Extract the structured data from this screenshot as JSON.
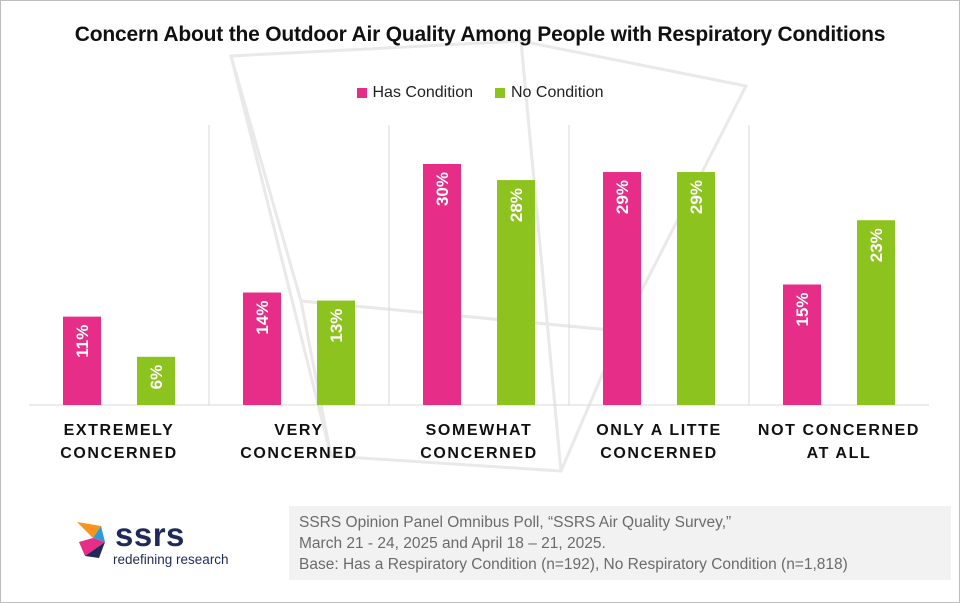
{
  "chart_data": {
    "type": "bar",
    "title": "Concern About the Outdoor Air Quality Among People with Respiratory Conditions",
    "categories": [
      [
        "EXTREMELY",
        "CONCERNED"
      ],
      [
        "VERY",
        "CONCERNED"
      ],
      [
        "SOMEWHAT",
        "CONCERNED"
      ],
      [
        "ONLY A LITTE",
        "CONCERNED"
      ],
      [
        "NOT CONCERNED",
        "AT ALL"
      ]
    ],
    "series": [
      {
        "name": "Has Condition",
        "color": "#e62d87",
        "values": [
          11,
          14,
          30,
          29,
          15
        ],
        "labels": [
          "11%",
          "14%",
          "30%",
          "29%",
          "15%"
        ]
      },
      {
        "name": "No Condition",
        "color": "#8dc31f",
        "values": [
          6,
          13,
          28,
          29,
          23
        ],
        "labels": [
          "6%",
          "13%",
          "28%",
          "29%",
          "23%"
        ]
      }
    ],
    "ylim": [
      0,
      34
    ],
    "legend": "top-center",
    "grid": false,
    "data_labels": "inside-top-rotated"
  },
  "source": {
    "lines": [
      "SSRS Opinion Panel Omnibus Poll, “SSRS Air Quality Survey,”",
      "March 21 - 24, 2025 and April 18 – 21, 2025.",
      "Base: Has a Respiratory Condition (n=192), No Respiratory Condition (n=1,818)"
    ]
  },
  "logo": {
    "wordmark": "ssrs",
    "tagline": "redefining research",
    "colors": [
      "#f7941d",
      "#2e9bd6",
      "#e62d87",
      "#1f2a5a"
    ]
  }
}
